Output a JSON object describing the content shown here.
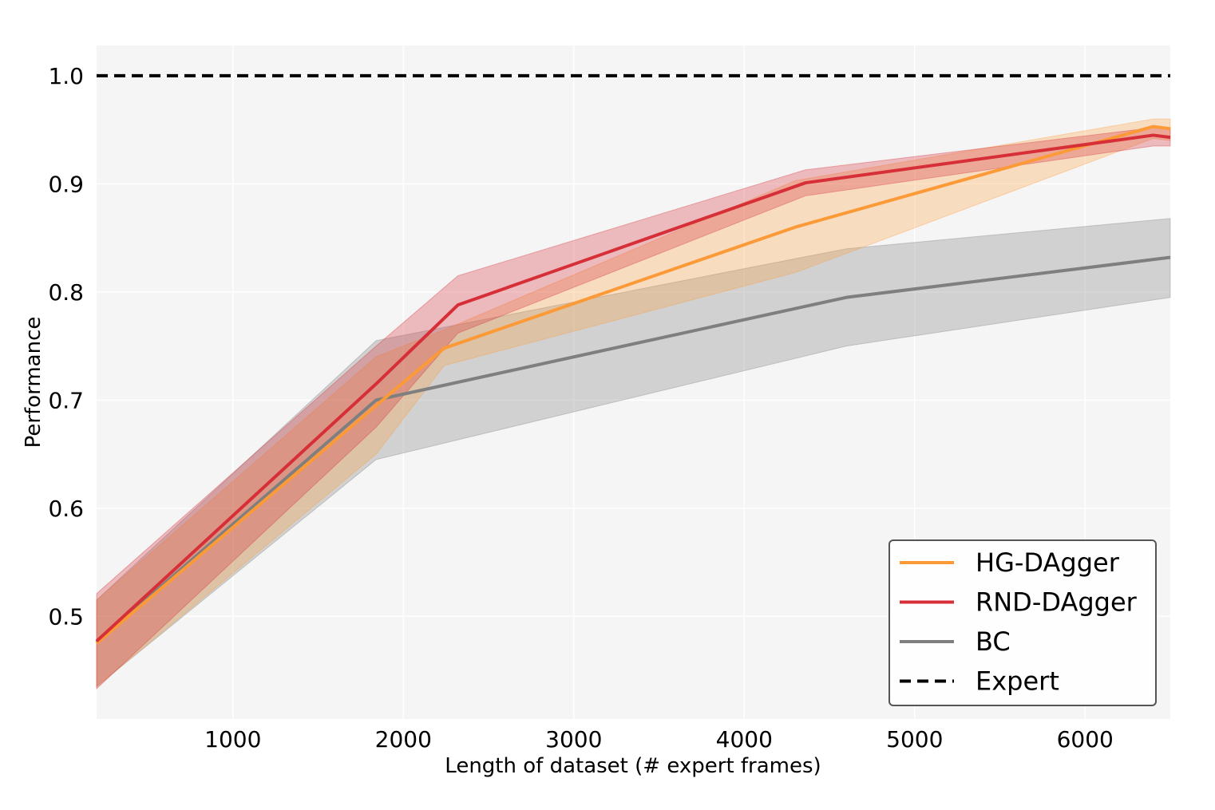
{
  "chart_data": {
    "type": "line",
    "xlabel": "Length of dataset (# expert frames)",
    "ylabel": "Performance",
    "xlim": [
      200,
      6500
    ],
    "ylim": [
      0.405,
      1.028
    ],
    "xticks": [
      1000,
      2000,
      3000,
      4000,
      5000,
      6000
    ],
    "xtick_labels": [
      "1000",
      "2000",
      "3000",
      "4000",
      "5000",
      "6000"
    ],
    "yticks": [
      0.5,
      0.6,
      0.7,
      0.8,
      0.9,
      1.0
    ],
    "ytick_labels": [
      "0.5",
      "0.6",
      "0.7",
      "0.8",
      "0.9",
      "1.0"
    ],
    "grid": true,
    "legend_position": "lower-right",
    "series": [
      {
        "name": "HG-DAgger",
        "color": "#fb9a36",
        "x": [
          200,
          1840,
          2240,
          4300,
          6400,
          6500
        ],
        "y": [
          0.475,
          0.695,
          0.748,
          0.86,
          0.953,
          0.951
        ],
        "lower": [
          0.435,
          0.65,
          0.732,
          0.818,
          0.942,
          0.94
        ],
        "upper": [
          0.515,
          0.74,
          0.765,
          0.903,
          0.96,
          0.96
        ]
      },
      {
        "name": "RND-DAgger",
        "color": "#d62f37",
        "x": [
          200,
          1840,
          2320,
          4360,
          6400,
          6500
        ],
        "y": [
          0.477,
          0.715,
          0.788,
          0.901,
          0.945,
          0.943
        ],
        "lower": [
          0.433,
          0.675,
          0.762,
          0.889,
          0.935,
          0.935
        ],
        "upper": [
          0.521,
          0.75,
          0.815,
          0.913,
          0.952,
          0.952
        ]
      },
      {
        "name": "BC",
        "color": "#7f7f7f",
        "x": [
          200,
          1840,
          4600,
          6500
        ],
        "y": [
          0.476,
          0.7,
          0.795,
          0.832
        ],
        "lower": [
          0.435,
          0.645,
          0.75,
          0.795
        ],
        "upper": [
          0.515,
          0.755,
          0.84,
          0.868
        ]
      }
    ],
    "reference_lines": [
      {
        "name": "Expert",
        "y": 1.0,
        "color": "#000000",
        "style": "dashed"
      }
    ]
  }
}
